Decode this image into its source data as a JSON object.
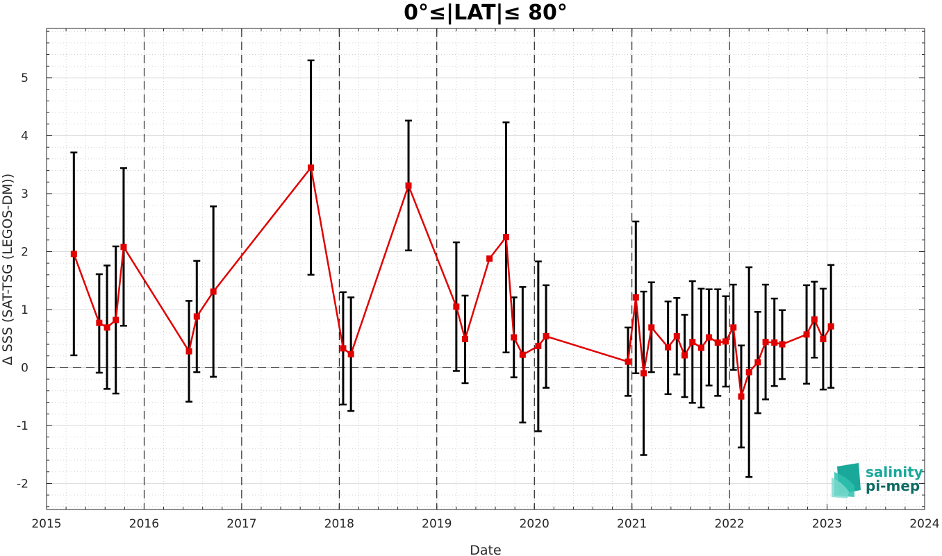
{
  "chart_data": {
    "type": "line",
    "title": "0°≤|LAT|≤ 80°",
    "xlabel": "Date",
    "ylabel": "Δ SSS (SAT-TSG (LEGOS-DM))",
    "xlim": [
      2015,
      2024
    ],
    "ylim": [
      -2.45,
      5.85
    ],
    "x_ticks": [
      2015,
      2016,
      2017,
      2018,
      2019,
      2020,
      2021,
      2022,
      2023,
      2024
    ],
    "x_tick_labels": [
      "2015",
      "2016",
      "2017",
      "2018",
      "2019",
      "2020",
      "2021",
      "2022",
      "2023",
      "2024"
    ],
    "y_ticks": [
      -2,
      -1,
      0,
      1,
      2,
      3,
      4,
      5
    ],
    "y_tick_labels": [
      "-2",
      "-1",
      "0",
      "1",
      "2",
      "3",
      "4",
      "5"
    ],
    "grid": true,
    "vertical_dashed_lines_x": [
      2016,
      2017,
      2018,
      2019,
      2020,
      2021,
      2022
    ],
    "zero_line": true,
    "series": [
      {
        "color": "#e00000",
        "marker": "square",
        "error_bar_color": "#000000",
        "points": [
          {
            "x": 2015.28,
            "y": 1.96,
            "low": 0.21,
            "high": 3.71
          },
          {
            "x": 2015.54,
            "y": 0.77,
            "low": -0.09,
            "high": 1.61
          },
          {
            "x": 2015.62,
            "y": 0.69,
            "low": -0.37,
            "high": 1.76
          },
          {
            "x": 2015.71,
            "y": 0.82,
            "low": -0.45,
            "high": 2.09
          },
          {
            "x": 2015.79,
            "y": 2.08,
            "low": 0.72,
            "high": 3.44
          },
          {
            "x": 2016.46,
            "y": 0.28,
            "low": -0.59,
            "high": 1.15
          },
          {
            "x": 2016.54,
            "y": 0.88,
            "low": -0.08,
            "high": 1.84
          },
          {
            "x": 2016.71,
            "y": 1.31,
            "low": -0.16,
            "high": 2.78
          },
          {
            "x": 2017.71,
            "y": 3.45,
            "low": 1.6,
            "high": 5.3
          },
          {
            "x": 2018.04,
            "y": 0.33,
            "low": -0.64,
            "high": 1.3
          },
          {
            "x": 2018.12,
            "y": 0.23,
            "low": -0.75,
            "high": 1.21
          },
          {
            "x": 2018.71,
            "y": 3.14,
            "low": 2.02,
            "high": 4.26
          },
          {
            "x": 2019.2,
            "y": 1.05,
            "low": -0.06,
            "high": 2.16
          },
          {
            "x": 2019.29,
            "y": 0.49,
            "low": -0.27,
            "high": 1.24
          },
          {
            "x": 2019.54,
            "y": 1.88
          },
          {
            "x": 2019.71,
            "y": 2.25,
            "low": 0.26,
            "high": 4.23
          },
          {
            "x": 2019.79,
            "y": 0.52,
            "low": -0.17,
            "high": 1.21
          },
          {
            "x": 2019.88,
            "y": 0.22,
            "low": -0.95,
            "high": 1.39
          },
          {
            "x": 2020.04,
            "y": 0.37,
            "low": -1.1,
            "high": 1.83
          },
          {
            "x": 2020.12,
            "y": 0.54,
            "low": -0.35,
            "high": 1.42
          },
          {
            "x": 2020.96,
            "y": 0.1,
            "low": -0.49,
            "high": 0.69
          },
          {
            "x": 2021.04,
            "y": 1.21,
            "low": -0.1,
            "high": 2.52
          },
          {
            "x": 2021.12,
            "y": -0.1,
            "low": -1.51,
            "high": 1.31
          },
          {
            "x": 2021.2,
            "y": 0.69,
            "low": -0.08,
            "high": 1.47
          },
          {
            "x": 2021.37,
            "y": 0.35,
            "low": -0.46,
            "high": 1.14
          },
          {
            "x": 2021.46,
            "y": 0.54,
            "low": -0.12,
            "high": 1.2
          },
          {
            "x": 2021.54,
            "y": 0.21,
            "low": -0.51,
            "high": 0.91
          },
          {
            "x": 2021.62,
            "y": 0.44,
            "low": -0.61,
            "high": 1.49
          },
          {
            "x": 2021.71,
            "y": 0.34,
            "low": -0.69,
            "high": 1.36
          },
          {
            "x": 2021.79,
            "y": 0.52,
            "low": -0.31,
            "high": 1.35
          },
          {
            "x": 2021.88,
            "y": 0.43,
            "low": -0.49,
            "high": 1.35
          },
          {
            "x": 2021.96,
            "y": 0.45,
            "low": -0.33,
            "high": 1.23
          },
          {
            "x": 2022.04,
            "y": 0.69,
            "low": -0.04,
            "high": 1.43
          },
          {
            "x": 2022.12,
            "y": -0.5,
            "low": -1.38,
            "high": 0.38
          },
          {
            "x": 2022.2,
            "y": -0.08,
            "low": -1.89,
            "high": 1.73
          },
          {
            "x": 2022.29,
            "y": 0.09,
            "low": -0.79,
            "high": 0.96
          },
          {
            "x": 2022.37,
            "y": 0.44,
            "low": -0.55,
            "high": 1.43
          },
          {
            "x": 2022.46,
            "y": 0.43,
            "low": -0.32,
            "high": 1.19
          },
          {
            "x": 2022.54,
            "y": 0.4,
            "low": -0.2,
            "high": 0.99
          },
          {
            "x": 2022.79,
            "y": 0.57,
            "low": -0.28,
            "high": 1.42
          },
          {
            "x": 2022.87,
            "y": 0.83,
            "low": 0.17,
            "high": 1.48
          },
          {
            "x": 2022.96,
            "y": 0.49,
            "low": -0.38,
            "high": 1.36
          },
          {
            "x": 2023.04,
            "y": 0.71,
            "low": -0.35,
            "high": 1.77
          }
        ]
      }
    ]
  },
  "logo": {
    "line1": "salinity",
    "line2": "pi-mep",
    "color1": "#1aa89a",
    "color2": "#0e6b64"
  }
}
